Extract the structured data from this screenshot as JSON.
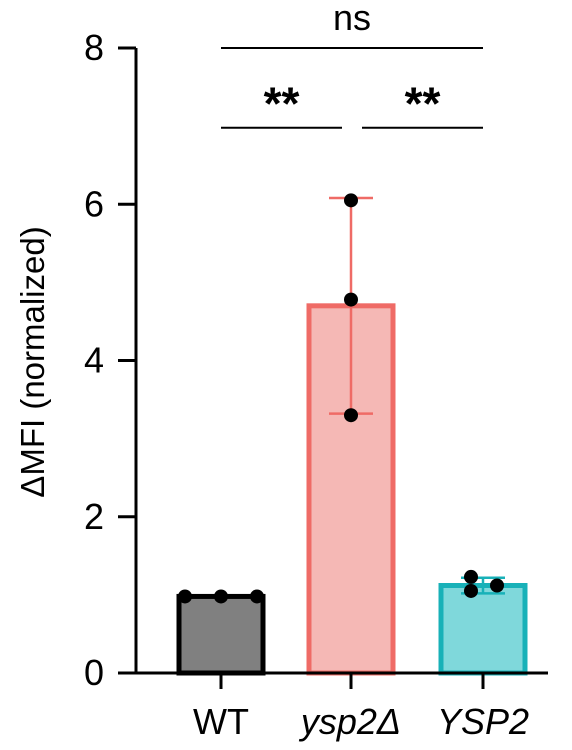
{
  "chart_data": {
    "type": "bar",
    "title": "",
    "xlabel": "",
    "ylabel": "ΔMFI (normalized)",
    "ylim": [
      0,
      8
    ],
    "yticks": [
      0,
      2,
      4,
      6,
      8
    ],
    "grid": false,
    "categories": [
      {
        "label": "WT",
        "italic": false
      },
      {
        "label": "ysp2Δ",
        "italic": true
      },
      {
        "label": "YSP2",
        "italic": true
      }
    ],
    "values": [
      0.98,
      4.7,
      1.12
    ],
    "error": [
      {
        "low": 0.98,
        "high": 0.98
      },
      {
        "low": 3.32,
        "high": 6.08
      },
      {
        "low": 1.02,
        "high": 1.22
      }
    ],
    "points": [
      [
        0.98,
        0.98,
        0.98
      ],
      [
        6.05,
        4.78,
        3.3
      ],
      [
        1.23,
        1.05,
        1.12
      ]
    ],
    "colors": {
      "fills": [
        "#808080",
        "#f5b8b5",
        "#7fd8db"
      ],
      "strokes": [
        "#000000",
        "#ef6b66",
        "#18b1b8"
      ],
      "errorbars": [
        "#000000",
        "#ef6b66",
        "#18b1b8"
      ],
      "points": "#000000"
    },
    "significance": [
      {
        "from": 0,
        "to": 2,
        "label": "ns",
        "level": 8.0
      },
      {
        "from": 0,
        "to": 1,
        "label": "**",
        "level": 6.98
      },
      {
        "from": 1,
        "to": 2,
        "label": "**",
        "level": 6.98
      }
    ]
  }
}
